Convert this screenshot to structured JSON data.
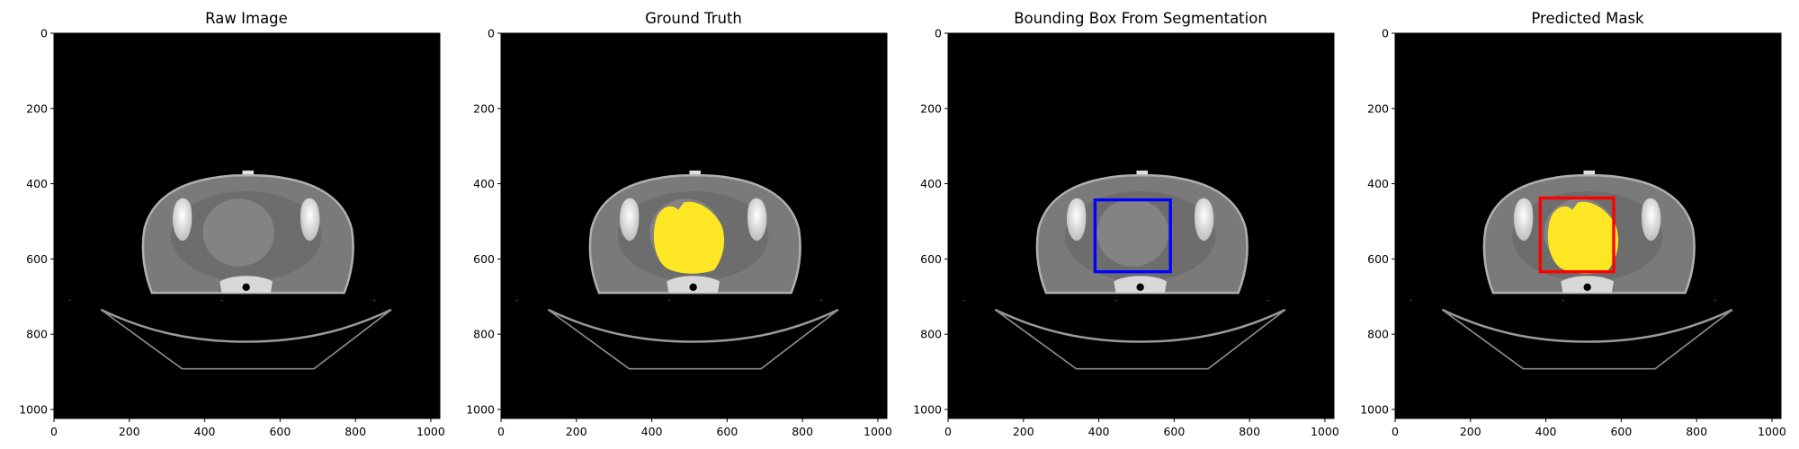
{
  "figure": {
    "background": "#ffffff",
    "image_extent": [
      0,
      1024
    ],
    "x_ticks": [
      "0",
      "200",
      "400",
      "600",
      "800",
      "1000"
    ],
    "y_ticks": [
      "0",
      "200",
      "400",
      "600",
      "800",
      "1000"
    ],
    "tick_values": [
      0,
      200,
      400,
      600,
      800,
      1000
    ]
  },
  "panels": [
    {
      "title": "Raw Image",
      "overlay": "none"
    },
    {
      "title": "Ground Truth",
      "overlay": "mask",
      "mask_color": "#fde725"
    },
    {
      "title": "Bounding Box From Segmentation",
      "overlay": "box",
      "box_color": "#0000ff",
      "box_data": {
        "x0": 390,
        "y0": 443,
        "x1": 590,
        "y1": 634
      }
    },
    {
      "title": "Predicted Mask",
      "overlay": "mask+box",
      "mask_color": "#fde725",
      "box_color": "#ff0000",
      "box_data": {
        "x0": 385,
        "y0": 438,
        "x1": 580,
        "y1": 634
      }
    }
  ]
}
